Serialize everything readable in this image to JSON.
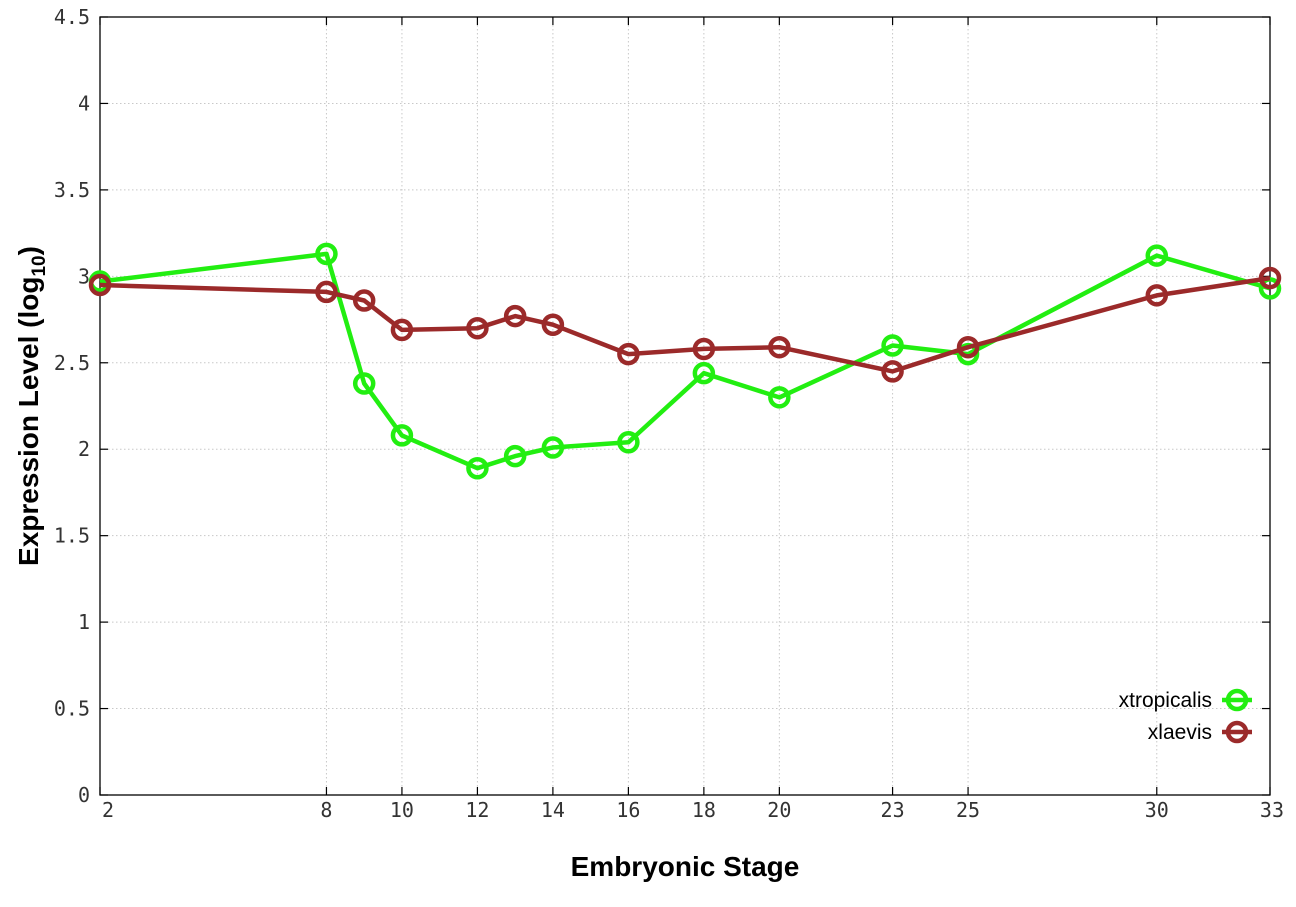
{
  "chart_data": {
    "type": "line",
    "xlabel": "Embryonic Stage",
    "ylabel": "Expression Level (log",
    "ylabel_sub": "10",
    "ylabel_close": ")",
    "xlim": [
      2,
      33
    ],
    "ylim": [
      0,
      4.5
    ],
    "xticks": [
      2,
      8,
      10,
      12,
      14,
      16,
      18,
      20,
      23,
      25,
      30,
      33
    ],
    "yticks": [
      0,
      0.5,
      1,
      1.5,
      2,
      2.5,
      3,
      3.5,
      4,
      4.5
    ],
    "ytick_labels": [
      "0",
      "0.5",
      "1",
      "1.5",
      "2",
      "2.5",
      "3",
      "3.5",
      "4",
      "4.5"
    ],
    "grid": true,
    "legend_position": "bottom-right",
    "series": [
      {
        "name": "xtropicalis",
        "color": "#22ee11",
        "x": [
          2,
          8,
          9,
          10,
          12,
          13,
          14,
          16,
          18,
          20,
          23,
          25,
          30,
          33
        ],
        "y": [
          2.97,
          3.13,
          2.38,
          2.08,
          1.89,
          1.96,
          2.01,
          2.04,
          2.44,
          2.3,
          2.6,
          2.55,
          3.12,
          2.93
        ]
      },
      {
        "name": "xlaevis",
        "color": "#9b2a2a",
        "x": [
          2,
          8,
          9,
          10,
          12,
          13,
          14,
          16,
          18,
          20,
          23,
          25,
          30,
          33
        ],
        "y": [
          2.95,
          2.91,
          2.86,
          2.69,
          2.7,
          2.77,
          2.72,
          2.55,
          2.58,
          2.59,
          2.45,
          2.59,
          2.89,
          2.99
        ]
      }
    ]
  }
}
